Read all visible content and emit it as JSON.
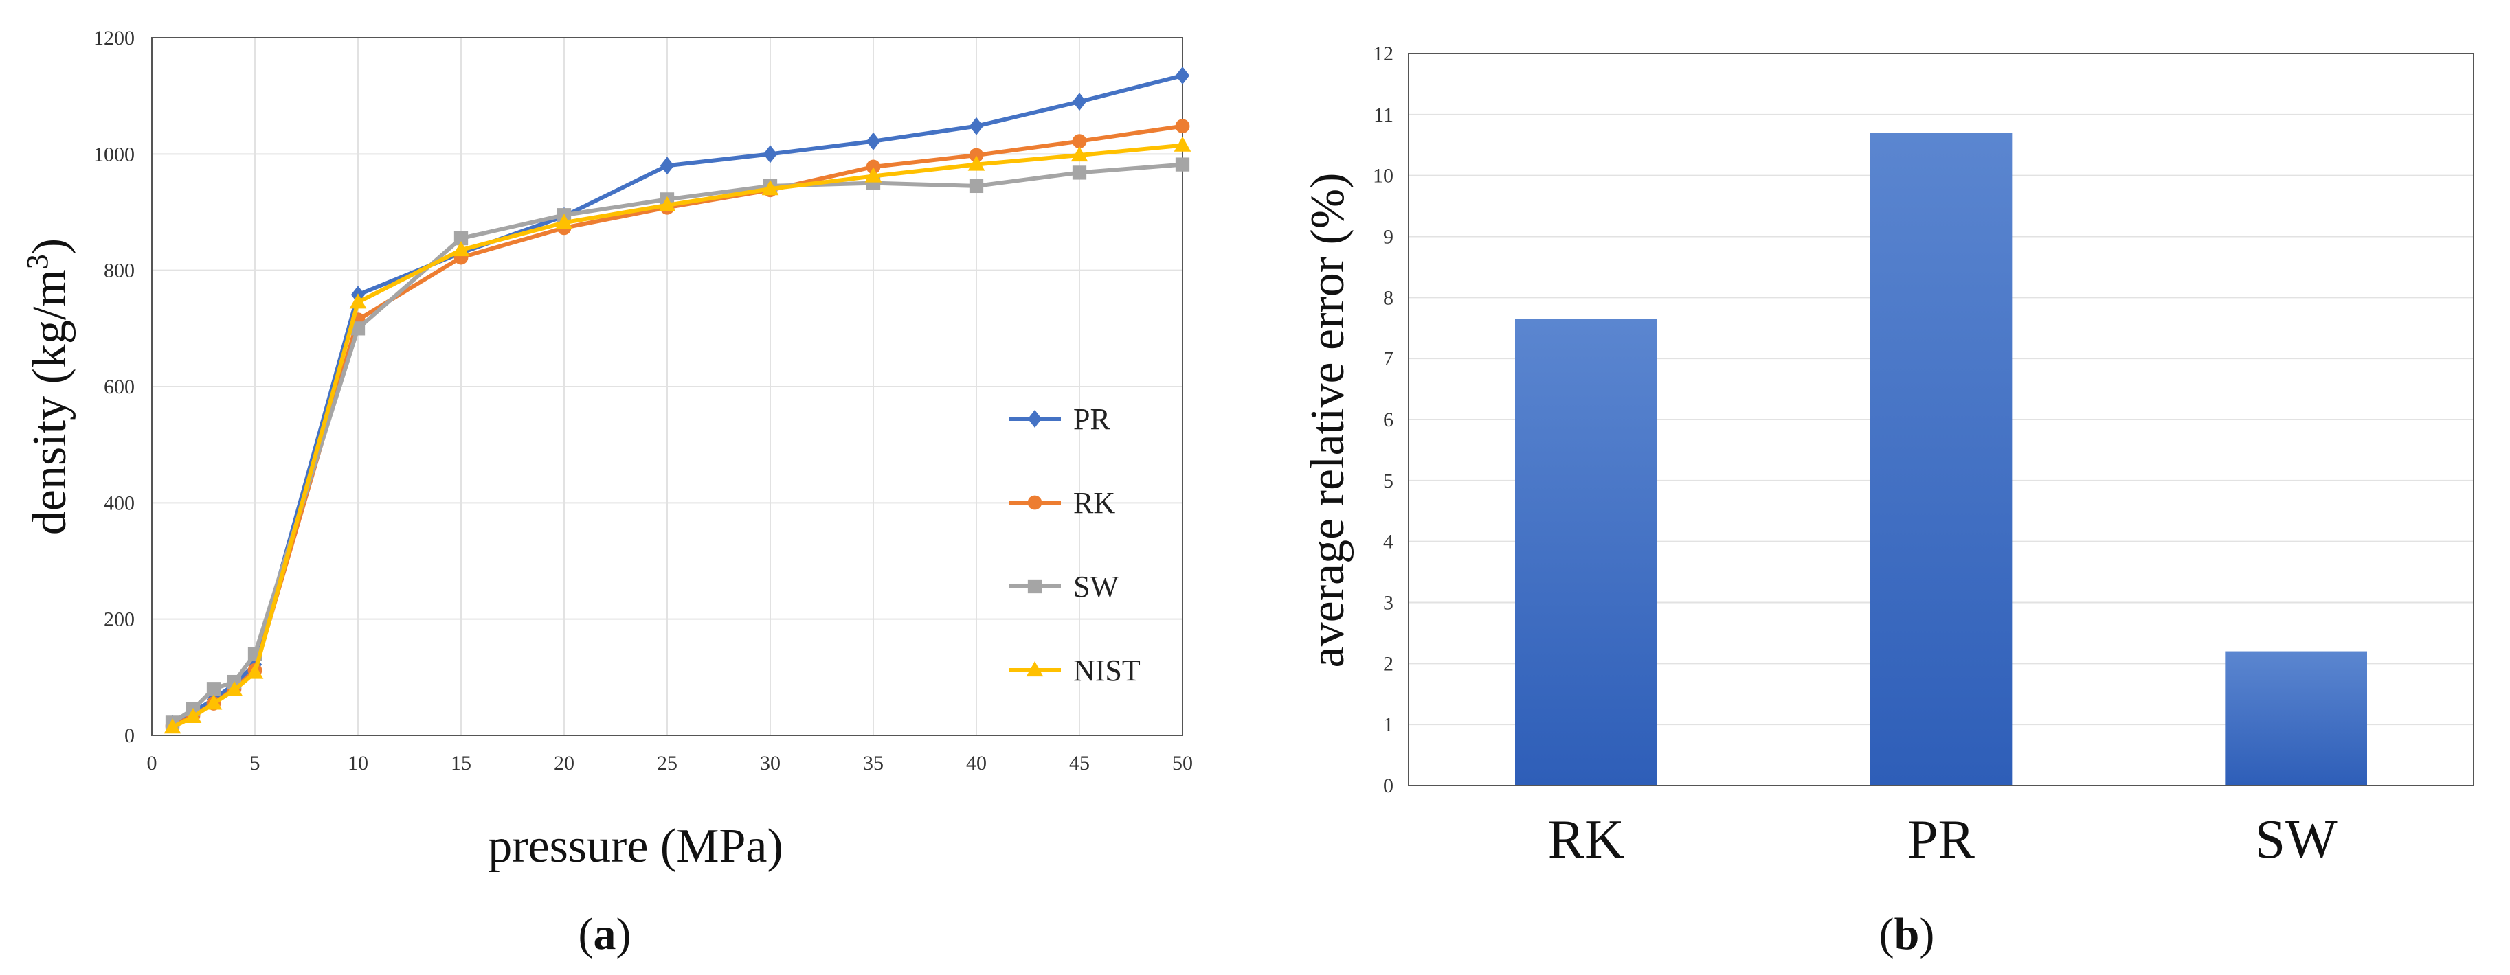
{
  "chart_data": [
    {
      "type": "line",
      "panel_label": "a",
      "title": "",
      "xlabel": "pressure (MPa)",
      "ylabel": "density (kg/m",
      "ylabel_sup": "3",
      "ylabel_close": ")",
      "xlim": [
        0,
        50
      ],
      "ylim": [
        0,
        1200
      ],
      "xticks": [
        "0",
        "5",
        "10",
        "15",
        "20",
        "25",
        "30",
        "35",
        "40",
        "45",
        "50"
      ],
      "xtick_values": [
        0,
        5,
        10,
        15,
        20,
        25,
        30,
        35,
        40,
        45,
        50
      ],
      "yticks": [
        "0",
        "200",
        "400",
        "600",
        "800",
        "1000",
        "1200"
      ],
      "ytick_values": [
        0,
        200,
        400,
        600,
        800,
        1000,
        1200
      ],
      "grid": true,
      "legend_position": "center-right",
      "x": [
        1,
        2,
        3,
        4,
        5,
        10,
        15,
        20,
        25,
        30,
        35,
        40,
        45,
        50
      ],
      "series": [
        {
          "name": "PR",
          "color": "#4472C4",
          "marker": "diamond",
          "values": [
            20,
            40,
            62,
            88,
            122,
            758,
            830,
            893,
            980,
            1000,
            1022,
            1048,
            1090,
            1135
          ]
        },
        {
          "name": "RK",
          "color": "#ED7D31",
          "marker": "circle",
          "values": [
            16,
            34,
            55,
            80,
            112,
            715,
            822,
            873,
            908,
            938,
            978,
            998,
            1022,
            1048
          ]
        },
        {
          "name": "SW",
          "color": "#A5A5A5",
          "marker": "square",
          "values": [
            22,
            45,
            80,
            92,
            140,
            700,
            855,
            895,
            922,
            945,
            950,
            945,
            968,
            982
          ]
        },
        {
          "name": "NIST",
          "color": "#FFC000",
          "marker": "triangle",
          "values": [
            14,
            32,
            55,
            78,
            108,
            745,
            835,
            882,
            912,
            940,
            962,
            982,
            998,
            1015
          ]
        }
      ]
    },
    {
      "type": "bar",
      "panel_label": "b",
      "title": "",
      "xlabel": "",
      "ylabel": "average relative error (%)",
      "categories": [
        "RK",
        "PR",
        "SW"
      ],
      "values": [
        7.65,
        10.7,
        2.2
      ],
      "ylim": [
        0,
        12
      ],
      "yticks": [
        "0",
        "1",
        "2",
        "3",
        "4",
        "5",
        "6",
        "7",
        "8",
        "9",
        "10",
        "11",
        "12"
      ],
      "ytick_values": [
        0,
        1,
        2,
        3,
        4,
        5,
        6,
        7,
        8,
        9,
        10,
        11,
        12
      ],
      "grid": true,
      "colors": {
        "top": "#5B86D0",
        "bottom": "#2E5EB8"
      }
    }
  ]
}
